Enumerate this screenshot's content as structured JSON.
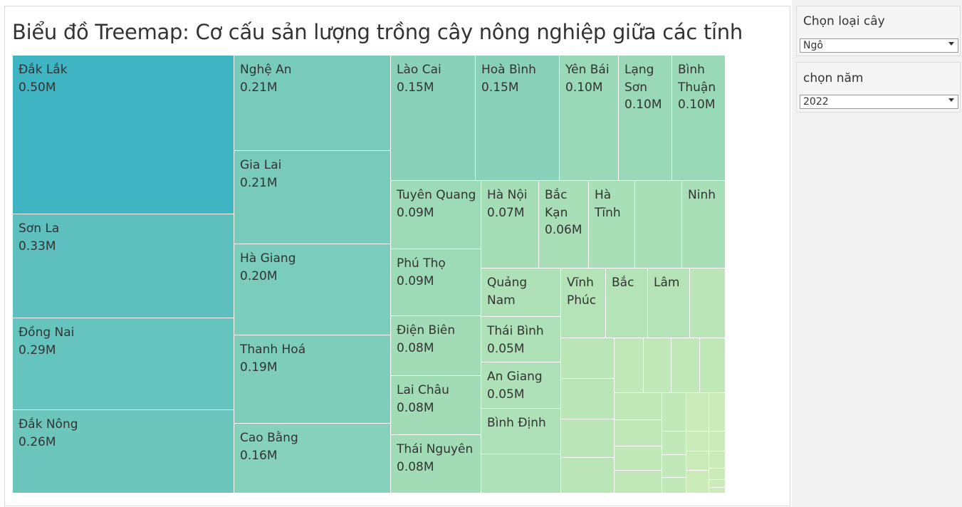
{
  "chart_data": {
    "type": "treemap",
    "title": "Biểu đồ Treemap: Cơ cấu sản lượng trồng cây nông nghiệp giữa các tỉnh",
    "unit": "M",
    "color_scale": [
      "#3fb4c2",
      "#97d8b7",
      "#e6f6b8"
    ],
    "items": [
      {
        "name": "Đắk Lắk",
        "value": 0.5,
        "label": "0.50M"
      },
      {
        "name": "Sơn La",
        "value": 0.33,
        "label": "0.33M"
      },
      {
        "name": "Đồng Nai",
        "value": 0.29,
        "label": "0.29M"
      },
      {
        "name": "Đắk Nông",
        "value": 0.26,
        "label": "0.26M"
      },
      {
        "name": "Nghệ An",
        "value": 0.21,
        "label": "0.21M"
      },
      {
        "name": "Gia Lai",
        "value": 0.21,
        "label": "0.21M"
      },
      {
        "name": "Hà Giang",
        "value": 0.2,
        "label": "0.20M"
      },
      {
        "name": "Thanh Hoá",
        "value": 0.19,
        "label": "0.19M"
      },
      {
        "name": "Cao Bằng",
        "value": 0.16,
        "label": "0.16M"
      },
      {
        "name": "Lào Cai",
        "value": 0.15,
        "label": "0.15M"
      },
      {
        "name": "Hoà Bình",
        "value": 0.15,
        "label": "0.15M"
      },
      {
        "name": "Yên Bái",
        "value": 0.1,
        "label": "0.10M"
      },
      {
        "name": "Lạng Sơn",
        "value": 0.1,
        "label": "0.10M"
      },
      {
        "name": "Bình Thuận",
        "value": 0.1,
        "label": "0.10M"
      },
      {
        "name": "Tuyên Quang",
        "value": 0.09,
        "label": "0.09M"
      },
      {
        "name": "Phú Thọ",
        "value": 0.09,
        "label": "0.09M"
      },
      {
        "name": "Điện Biên",
        "value": 0.08,
        "label": "0.08M"
      },
      {
        "name": "Lai Châu",
        "value": 0.08,
        "label": "0.08M"
      },
      {
        "name": "Thái Nguyên",
        "value": 0.08,
        "label": "0.08M"
      },
      {
        "name": "Hà Nội",
        "value": 0.07,
        "label": "0.07M"
      },
      {
        "name": "Bắc Kạn",
        "value": 0.06,
        "label": "0.06M"
      },
      {
        "name": "Hà Tĩnh",
        "value": 0.06,
        "label": ""
      },
      {
        "name": "",
        "value": 0.06,
        "label": ""
      },
      {
        "name": "Ninh",
        "value": 0.06,
        "label": ""
      },
      {
        "name": "Quảng Nam",
        "value": 0.05,
        "label": ""
      },
      {
        "name": "Thái Bình",
        "value": 0.05,
        "label": "0.05M"
      },
      {
        "name": "An Giang",
        "value": 0.05,
        "label": "0.05M"
      },
      {
        "name": "Bình Định",
        "value": 0.05,
        "label": ""
      },
      {
        "name": "",
        "value": 0.05,
        "label": ""
      },
      {
        "name": "Vĩnh Phúc",
        "value": 0.04,
        "label": ""
      },
      {
        "name": "Bắc",
        "value": 0.04,
        "label": ""
      },
      {
        "name": "Lâm",
        "value": 0.04,
        "label": ""
      },
      {
        "name": "",
        "value": 0.03,
        "label": ""
      },
      {
        "name": "",
        "value": 0.03,
        "label": ""
      },
      {
        "name": "",
        "value": 0.03,
        "label": ""
      },
      {
        "name": "",
        "value": 0.03,
        "label": ""
      },
      {
        "name": "",
        "value": 0.03,
        "label": ""
      },
      {
        "name": "",
        "value": 0.02,
        "label": ""
      },
      {
        "name": "",
        "value": 0.02,
        "label": ""
      },
      {
        "name": "",
        "value": 0.02,
        "label": ""
      },
      {
        "name": "",
        "value": 0.02,
        "label": ""
      },
      {
        "name": "",
        "value": 0.02,
        "label": ""
      },
      {
        "name": "",
        "value": 0.02,
        "label": ""
      },
      {
        "name": "",
        "value": 0.02,
        "label": ""
      },
      {
        "name": "",
        "value": 0.02,
        "label": ""
      },
      {
        "name": "",
        "value": 0.02,
        "label": ""
      },
      {
        "name": "",
        "value": 0.02,
        "label": ""
      },
      {
        "name": "",
        "value": 0.02,
        "label": ""
      },
      {
        "name": "",
        "value": 0.02,
        "label": ""
      },
      {
        "name": "",
        "value": 0.01,
        "label": ""
      },
      {
        "name": "",
        "value": 0.01,
        "label": ""
      },
      {
        "name": "",
        "value": 0.01,
        "label": ""
      },
      {
        "name": "",
        "value": 0.01,
        "label": ""
      },
      {
        "name": "",
        "value": 0.01,
        "label": ""
      },
      {
        "name": "",
        "value": 0.01,
        "label": ""
      },
      {
        "name": "",
        "value": 0.01,
        "label": ""
      },
      {
        "name": "",
        "value": 0.01,
        "label": ""
      },
      {
        "name": "",
        "value": 0.01,
        "label": ""
      },
      {
        "name": "",
        "value": 0.01,
        "label": ""
      },
      {
        "name": "",
        "value": 0.01,
        "label": ""
      },
      {
        "name": "",
        "value": 0.01,
        "label": ""
      }
    ]
  },
  "filters": {
    "crop_type": {
      "title": "Chọn loại cây",
      "selected": "Ngô"
    },
    "year": {
      "title": "chọn năm",
      "selected": "2022"
    }
  }
}
